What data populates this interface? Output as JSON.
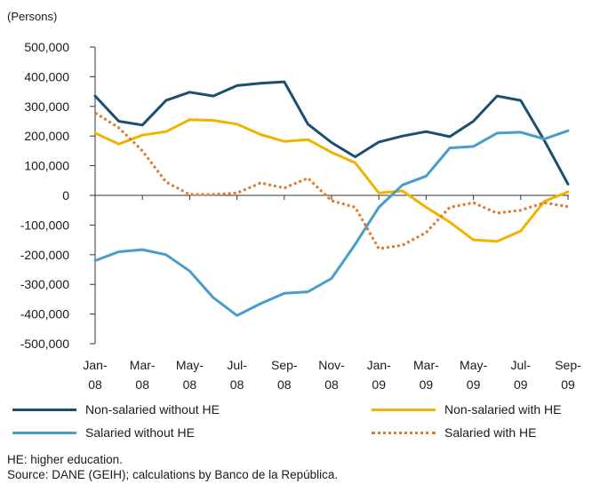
{
  "chart_data": {
    "type": "line",
    "ylabel": "(Persons)",
    "ylim": [
      -500000,
      500000
    ],
    "yticks": [
      500000,
      400000,
      300000,
      200000,
      100000,
      0,
      -100000,
      -200000,
      -300000,
      -400000,
      -500000
    ],
    "ytick_labels": [
      "500,000",
      "400,000",
      "300,000",
      "200,000",
      "100,000",
      "0",
      "-100,000",
      "-200,000",
      "-300,000",
      "-400,000",
      "-500,000"
    ],
    "x": [
      "Jan-08",
      "Feb-08",
      "Mar-08",
      "Apr-08",
      "May-08",
      "Jun-08",
      "Jul-08",
      "Aug-08",
      "Sep-08",
      "Oct-08",
      "Nov-08",
      "Dec-08",
      "Jan-09",
      "Feb-09",
      "Mar-09",
      "Apr-09",
      "May-09",
      "Jun-09",
      "Jul-09",
      "Aug-09",
      "Sep-09"
    ],
    "xtick_labels": [
      {
        "index": 0,
        "line1": "Jan-",
        "line2": "08"
      },
      {
        "index": 2,
        "line1": "Mar-",
        "line2": "08"
      },
      {
        "index": 4,
        "line1": "May-",
        "line2": "08"
      },
      {
        "index": 6,
        "line1": "Jul-",
        "line2": "08"
      },
      {
        "index": 8,
        "line1": "Sep-",
        "line2": "08"
      },
      {
        "index": 10,
        "line1": "Nov-",
        "line2": "08"
      },
      {
        "index": 12,
        "line1": "Jan-",
        "line2": "09"
      },
      {
        "index": 14,
        "line1": "Mar-",
        "line2": "09"
      },
      {
        "index": 16,
        "line1": "May-",
        "line2": "09"
      },
      {
        "index": 18,
        "line1": "Jul-",
        "line2": "09"
      },
      {
        "index": 20,
        "line1": "Sep-",
        "line2": "09"
      }
    ],
    "series": [
      {
        "name": "Non-salaried without HE",
        "color": "#1b4f72",
        "dash": "solid",
        "values": [
          335000,
          250000,
          237000,
          320000,
          348000,
          335000,
          370000,
          378000,
          383000,
          240000,
          178000,
          130000,
          180000,
          200000,
          215000,
          198000,
          250000,
          335000,
          320000,
          185000,
          38000
        ]
      },
      {
        "name": "Non-salaried with HE",
        "color": "#f0b400",
        "dash": "solid",
        "values": [
          210000,
          173000,
          203000,
          215000,
          255000,
          253000,
          240000,
          205000,
          182000,
          188000,
          145000,
          110000,
          8000,
          15000,
          -40000,
          -90000,
          -150000,
          -155000,
          -120000,
          -20000,
          12000
        ]
      },
      {
        "name": "Salaried without HE",
        "color": "#4a9cc9",
        "dash": "solid",
        "values": [
          -220000,
          -190000,
          -183000,
          -200000,
          -255000,
          -345000,
          -405000,
          -365000,
          -330000,
          -325000,
          -280000,
          -165000,
          -40000,
          35000,
          65000,
          160000,
          165000,
          210000,
          213000,
          190000,
          218000
        ]
      },
      {
        "name": "Salaried with HE",
        "color": "#e07b2e",
        "dash": "dotted",
        "values": [
          278000,
          228000,
          150000,
          45000,
          3000,
          3000,
          8000,
          42000,
          25000,
          58000,
          -18000,
          -40000,
          -180000,
          -168000,
          -125000,
          -40000,
          -25000,
          -60000,
          -50000,
          -25000,
          -38000
        ]
      }
    ]
  },
  "legend": {
    "item1": "Non-salaried without HE",
    "item2": "Non-salaried with HE",
    "item3": "Salaried without HE",
    "item4": "Salaried with HE"
  },
  "notes": {
    "line1": "HE: higher education.",
    "line2": "Source: DANE (GEIH); calculations by Banco de la República."
  }
}
